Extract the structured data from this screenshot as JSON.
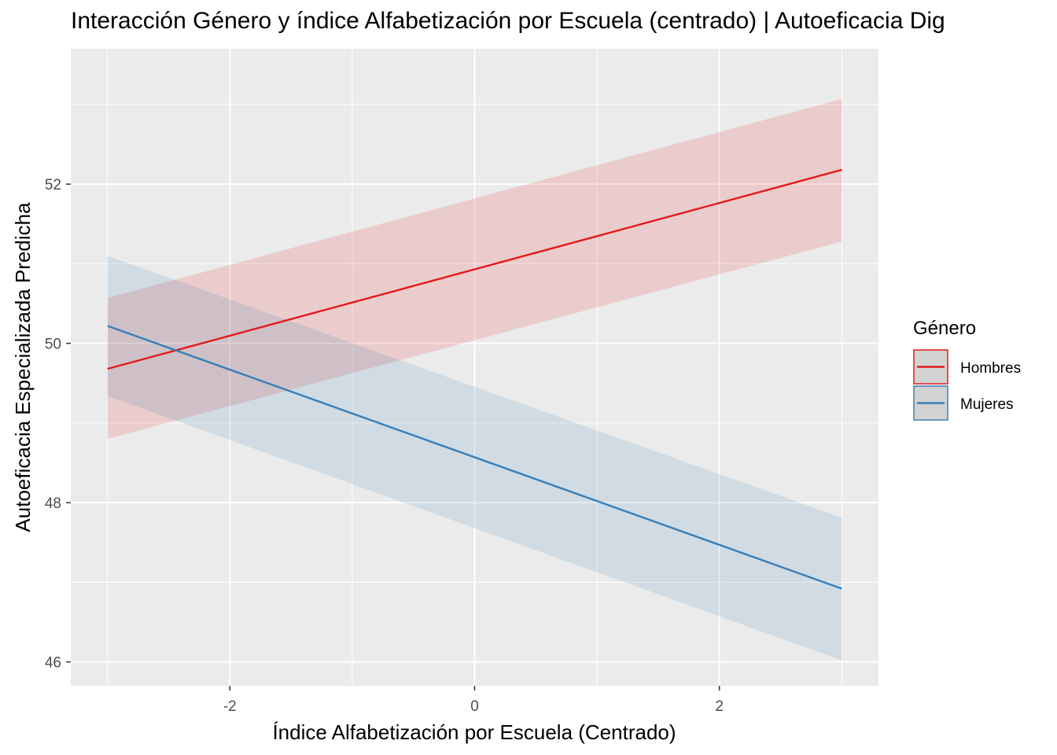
{
  "chart_data": {
    "type": "line",
    "title": "Interacción Género y índice Alfabetización por Escuela (centrado) | Autoeficacia Dig",
    "xlabel": "Índice Alfabetización por Escuela (Centrado)",
    "ylabel": "Autoeficacia Especializada Predicha",
    "xlim": [
      -3.3,
      3.3
    ],
    "ylim": [
      45.7,
      53.7
    ],
    "x_ticks": [
      -2,
      0,
      2
    ],
    "x_tick_labels": [
      "-2",
      "0",
      "2"
    ],
    "y_ticks": [
      46,
      48,
      50,
      52
    ],
    "y_tick_labels": [
      "46",
      "48",
      "50",
      "52"
    ],
    "grid": true,
    "legend": {
      "title": "Género",
      "position": "right"
    },
    "series": [
      {
        "name": "Hombres",
        "color": "#e41a1c",
        "x": [
          -3,
          3
        ],
        "y": [
          49.68,
          52.18
        ],
        "lower": [
          48.8,
          51.28
        ],
        "upper": [
          50.57,
          53.07
        ]
      },
      {
        "name": "Mujeres",
        "color": "#377eb8",
        "x": [
          -3,
          3
        ],
        "y": [
          50.22,
          46.92
        ],
        "lower": [
          49.34,
          46.02
        ],
        "upper": [
          51.1,
          47.81
        ]
      }
    ]
  }
}
